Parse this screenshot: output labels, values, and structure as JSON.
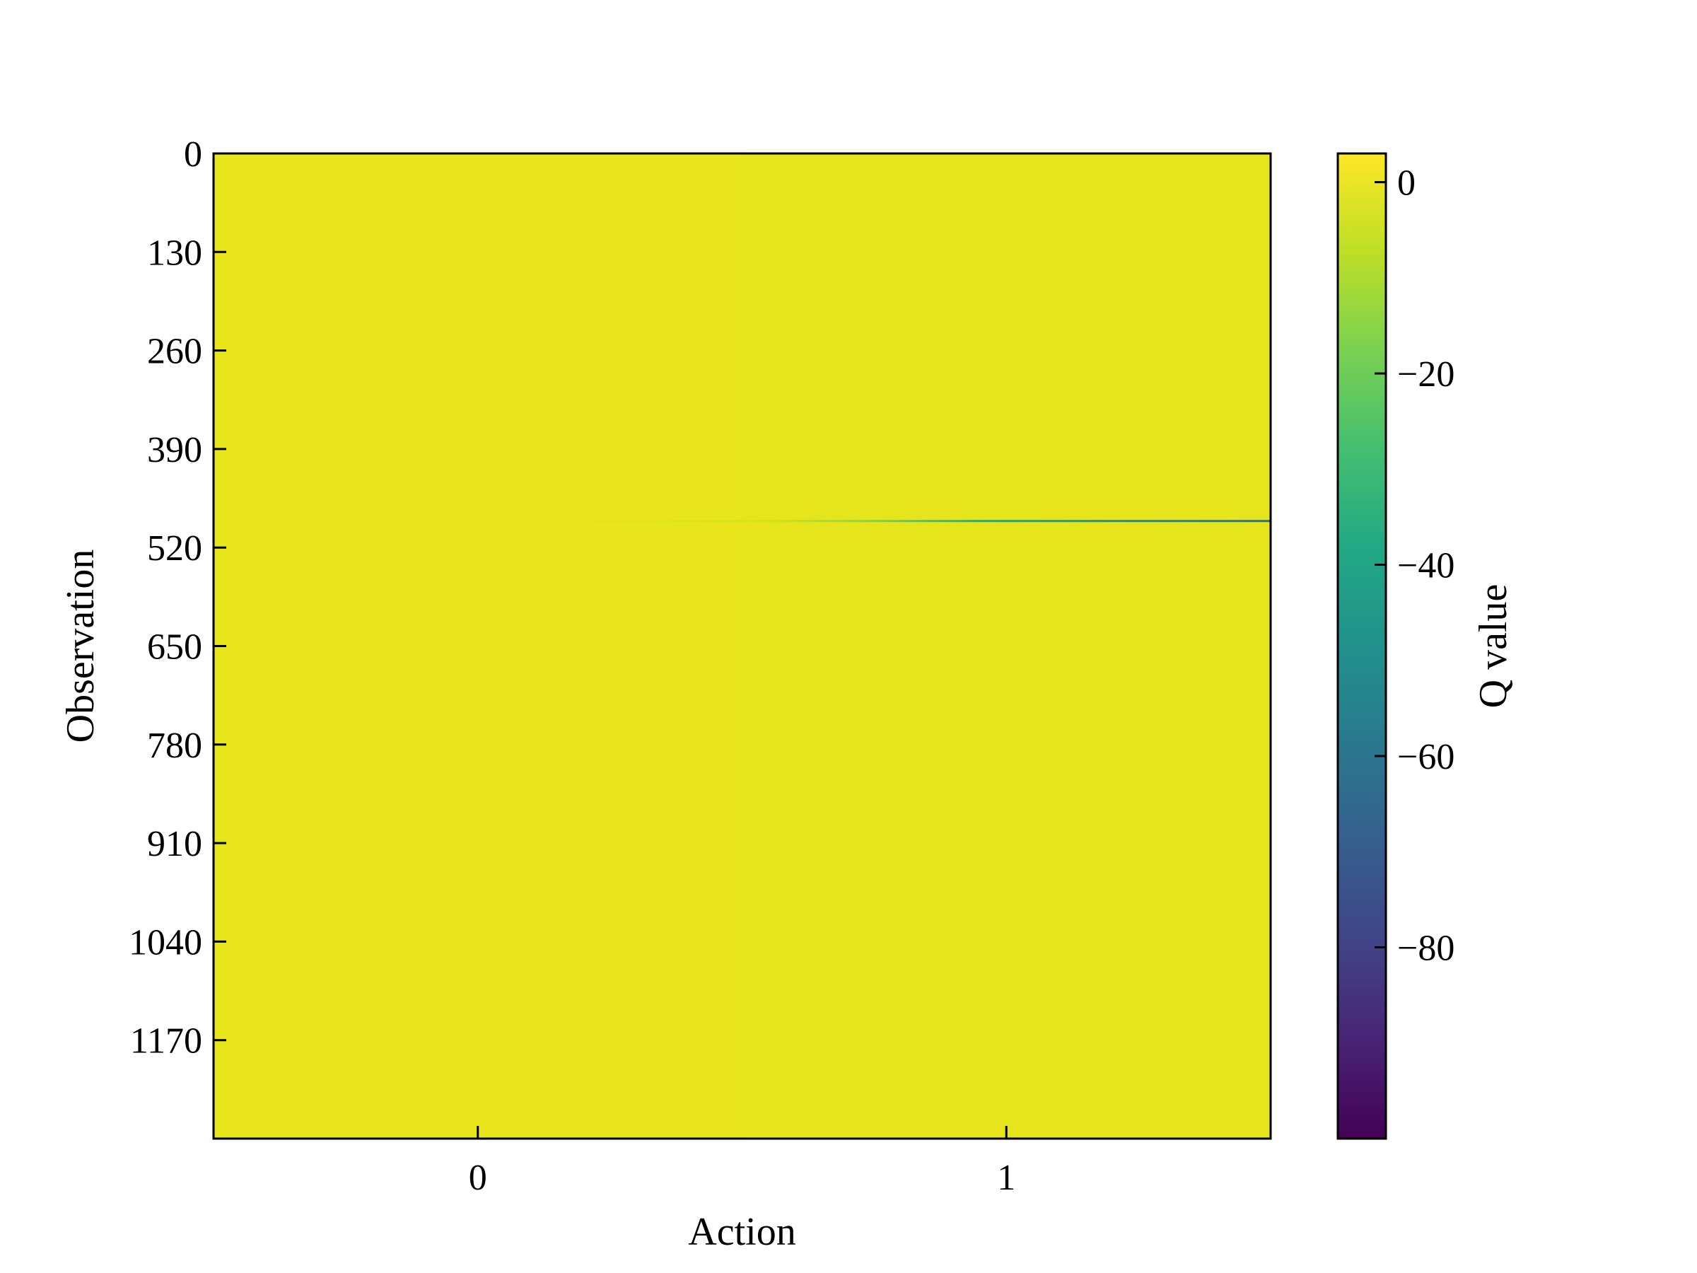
{
  "chart_data": {
    "type": "heatmap",
    "xlabel": "Action",
    "ylabel": "Observation",
    "colorbar_label": "Q value",
    "x_categories": [
      "0",
      "1"
    ],
    "xticks": [
      "0",
      "1"
    ],
    "y_ticks": [
      0,
      130,
      260,
      390,
      520,
      650,
      780,
      910,
      1040,
      1170
    ],
    "y_tick_labels": [
      "0",
      "130",
      "260",
      "390",
      "520",
      "650",
      "780",
      "910",
      "1040",
      "1170"
    ],
    "y_range": [
      0,
      1300
    ],
    "colormap": "viridis",
    "color_range": [
      -100,
      3
    ],
    "colorbar_ticks": [
      0,
      -20,
      -40,
      -60,
      -80
    ],
    "colorbar_tick_labels": [
      "0",
      "−20",
      "−40",
      "−60",
      "−80"
    ],
    "typical_value": 1,
    "anomaly": {
      "observation": 485,
      "action_0_value": 0,
      "action_1_value": -60
    }
  },
  "colors": {
    "background": "#ffffff",
    "frame": "#000000"
  }
}
